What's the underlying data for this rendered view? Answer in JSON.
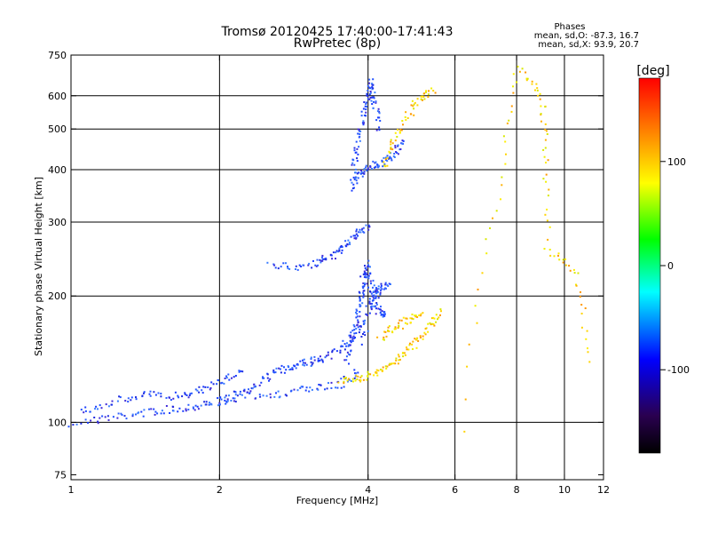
{
  "chart_data": {
    "type": "scatter",
    "title": "Tromsø 20120425 17:40:00-17:41:43",
    "subtitle": "RwPretec (8p)",
    "xlabel": "Frequency [MHz]",
    "ylabel": "Stationary phase Virtual Height [km]",
    "x_scale": "log",
    "y_scale": "log",
    "xlim": [
      1,
      12
    ],
    "ylim": [
      73,
      750
    ],
    "x_ticks": [
      1,
      2,
      4,
      6,
      8,
      10,
      12
    ],
    "x_tick_labels": [
      "1",
      "2",
      "4",
      "6",
      "8",
      "10",
      "12"
    ],
    "y_ticks": [
      75,
      100,
      200,
      300,
      400,
      500,
      600,
      750
    ],
    "y_tick_labels": [
      "75",
      "100",
      "200",
      "300",
      "400",
      "500",
      "600",
      "750"
    ],
    "grid": true,
    "x_gridlines": [
      2,
      4,
      6,
      8,
      10
    ],
    "y_gridlines": [
      100,
      200,
      300,
      400,
      500,
      600
    ],
    "legend": {
      "title": "Phases",
      "lines": [
        "mean, sd,O: -87.3, 16.7",
        "mean, sd,X:  93.9, 20.7"
      ]
    },
    "colorbar": {
      "label": "[deg]",
      "range": [
        -180,
        180
      ],
      "ticks": [
        100,
        0,
        -100
      ],
      "tick_labels": [
        "100",
        "0",
        "-100"
      ],
      "colors": [
        "#ff0000",
        "#ff8000",
        "#ffff00",
        "#00ff00",
        "#00ffff",
        "#0000ff",
        "#2a0050",
        "#000000"
      ]
    },
    "series": [
      {
        "name": "O",
        "color": "#2040ff",
        "traces": [
          {
            "f": [
              1.0,
              1.2,
              1.4,
              1.6,
              1.8,
              2.0,
              2.3,
              2.7,
              3.1,
              3.5,
              3.8
            ],
            "h": [
              100,
              103,
              106,
              108,
              110,
              113,
              116,
              118,
              121,
              124,
              132
            ]
          },
          {
            "f": [
              1.05,
              1.2,
              1.4,
              1.6,
              1.8,
              2.0,
              2.2
            ],
            "h": [
              107,
              112,
              117,
              116,
              119,
              126,
              133
            ]
          },
          {
            "f": [
              2.0,
              2.2,
              2.4,
              2.6,
              2.8,
              3.0,
              3.2,
              3.5,
              3.7,
              3.9
            ],
            "h": [
              112,
              118,
              125,
              132,
              137,
              139,
              142,
              150,
              160,
              175
            ]
          },
          {
            "f": [
              3.6,
              3.7,
              3.8,
              3.85,
              3.9,
              3.95,
              4.0,
              4.1,
              4.2,
              4.3
            ],
            "h": [
              140,
              160,
              180,
              200,
              220,
              240,
              220,
              200,
              185,
              180
            ]
          },
          {
            "f": [
              3.9,
              4.0,
              4.1,
              4.2,
              4.4
            ],
            "h": [
              155,
              190,
              200,
              210,
              215
            ]
          },
          {
            "f": [
              2.5,
              2.9,
              3.2,
              3.4,
              3.6,
              3.8,
              4.0
            ],
            "h": [
              238,
              236,
              243,
              252,
              268,
              283,
              296
            ]
          },
          {
            "f": [
              3.7,
              3.75,
              3.8,
              3.9,
              4.0,
              4.05,
              4.1,
              4.2
            ],
            "h": [
              360,
              420,
              480,
              540,
              600,
              650,
              580,
              500
            ]
          },
          {
            "f": [
              3.75,
              3.9,
              4.1,
              4.3,
              4.5,
              4.7
            ],
            "h": [
              380,
              395,
              410,
              420,
              440,
              470
            ]
          }
        ]
      },
      {
        "name": "X",
        "color": "#ffd000",
        "traces": [
          {
            "f": [
              3.5,
              3.8,
              4.1,
              4.4,
              4.7,
              5.0,
              5.3,
              5.6
            ],
            "h": [
              127,
              128,
              131,
              137,
              145,
              157,
              170,
              185
            ]
          },
          {
            "f": [
              4.2,
              4.5,
              4.8,
              5.1
            ],
            "h": [
              160,
              168,
              176,
              182
            ]
          },
          {
            "f": [
              4.3,
              4.5,
              4.8,
              5.1,
              5.4
            ],
            "h": [
              410,
              470,
              540,
              600,
              620
            ]
          },
          {
            "f": [
              6.2,
              7.4,
              8.0,
              9.0,
              9.1,
              9.2,
              10.5,
              11.2
            ],
            "h": [
              95,
              365,
              700,
              600,
              450,
              260,
              230,
              140
            ]
          }
        ]
      }
    ]
  }
}
